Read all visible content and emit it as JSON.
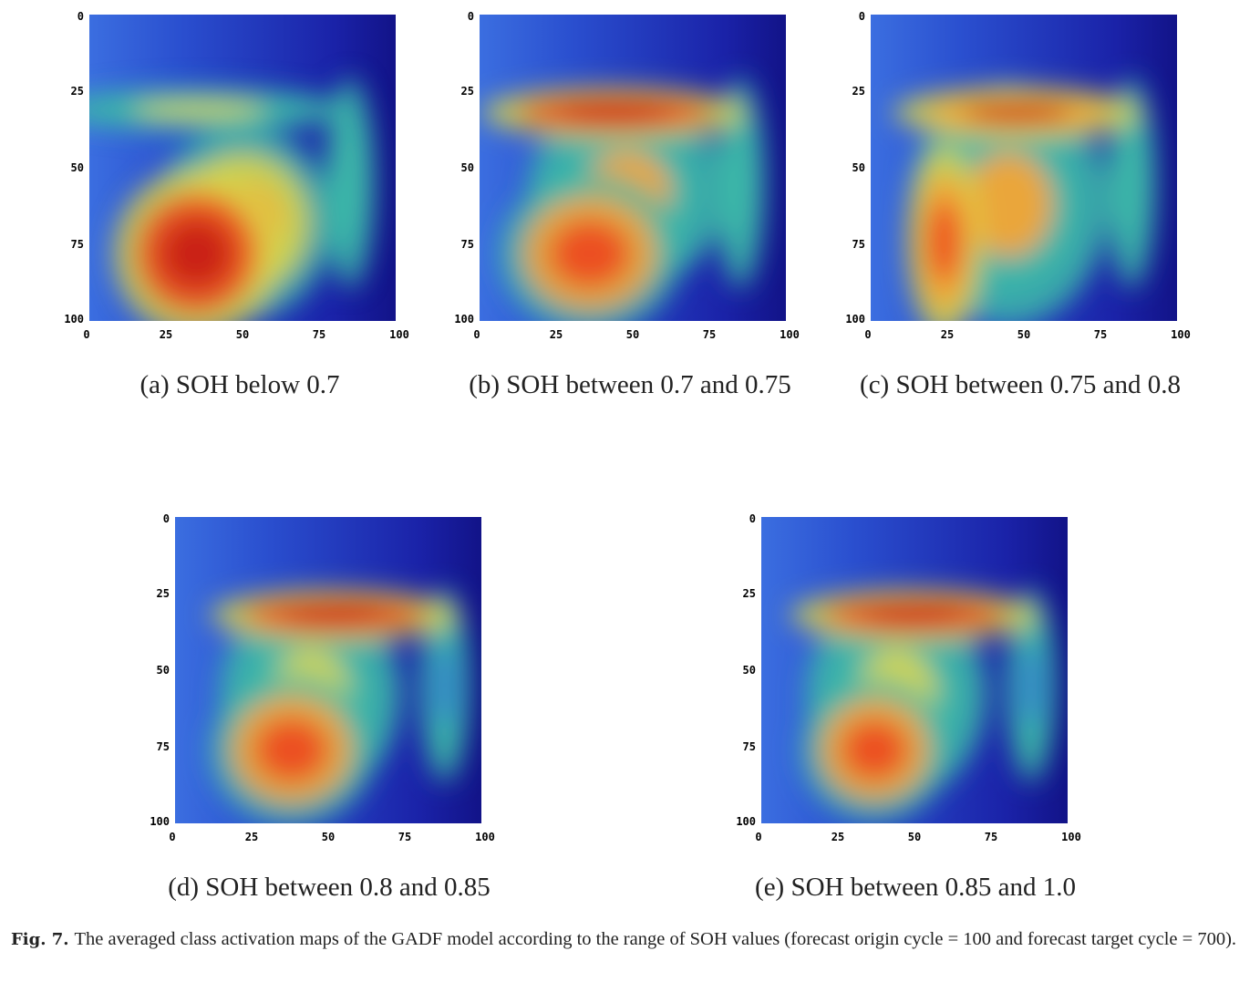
{
  "chart_data": [
    {
      "type": "heatmap",
      "panel_label": "(a) SOH below 0.7",
      "x_ticks": [
        "0",
        "25",
        "50",
        "75",
        "100"
      ],
      "y_ticks": [
        "0",
        "25",
        "50",
        "75",
        "100"
      ],
      "xlim": [
        0,
        100
      ],
      "ylim": [
        0,
        100
      ],
      "hotspots": [
        {
          "x": 35,
          "y": 78,
          "rx": 20,
          "ry": 19,
          "level": 1.0
        },
        {
          "x": 50,
          "y": 68,
          "rx": 22,
          "ry": 22,
          "level": 0.7
        },
        {
          "x": 36,
          "y": 31,
          "rx": 36,
          "ry": 4,
          "level": 0.55
        },
        {
          "x": 85,
          "y": 55,
          "rx": 6,
          "ry": 24,
          "level": 0.3
        }
      ]
    },
    {
      "type": "heatmap",
      "panel_label": "(b) SOH between 0.7 and 0.75",
      "x_ticks": [
        "0",
        "25",
        "50",
        "75",
        "100"
      ],
      "y_ticks": [
        "0",
        "25",
        "50",
        "75",
        "100"
      ],
      "xlim": [
        0,
        100
      ],
      "ylim": [
        0,
        100
      ],
      "hotspots": [
        {
          "x": 44,
          "y": 32,
          "rx": 32,
          "ry": 5,
          "level": 1.0
        },
        {
          "x": 36,
          "y": 78,
          "rx": 22,
          "ry": 18,
          "level": 0.85
        },
        {
          "x": 48,
          "y": 58,
          "rx": 24,
          "ry": 22,
          "level": 0.6
        },
        {
          "x": 85,
          "y": 55,
          "rx": 6,
          "ry": 24,
          "level": 0.3
        }
      ]
    },
    {
      "type": "heatmap",
      "panel_label": "(c) SOH between 0.75 and 0.8",
      "x_ticks": [
        "0",
        "25",
        "50",
        "75",
        "100"
      ],
      "y_ticks": [
        "0",
        "25",
        "50",
        "75",
        "100"
      ],
      "xlim": [
        0,
        100
      ],
      "ylim": [
        0,
        100
      ],
      "hotspots": [
        {
          "x": 48,
          "y": 32,
          "rx": 30,
          "ry": 5,
          "level": 0.95
        },
        {
          "x": 24,
          "y": 74,
          "rx": 9,
          "ry": 22,
          "level": 0.9
        },
        {
          "x": 45,
          "y": 62,
          "rx": 24,
          "ry": 28,
          "level": 0.6
        },
        {
          "x": 85,
          "y": 55,
          "rx": 6,
          "ry": 24,
          "level": 0.3
        }
      ]
    },
    {
      "type": "heatmap",
      "panel_label": "(d) SOH between 0.8 and 0.85",
      "x_ticks": [
        "0",
        "25",
        "50",
        "75",
        "100"
      ],
      "y_ticks": [
        "0",
        "25",
        "50",
        "75",
        "100"
      ],
      "xlim": [
        0,
        100
      ],
      "ylim": [
        0,
        100
      ],
      "hotspots": [
        {
          "x": 52,
          "y": 32,
          "rx": 30,
          "ry": 5,
          "level": 1.0
        },
        {
          "x": 38,
          "y": 76,
          "rx": 20,
          "ry": 17,
          "level": 0.85
        },
        {
          "x": 44,
          "y": 58,
          "rx": 22,
          "ry": 24,
          "level": 0.55
        },
        {
          "x": 88,
          "y": 55,
          "rx": 6,
          "ry": 22,
          "level": 0.25
        }
      ]
    },
    {
      "type": "heatmap",
      "panel_label": "(e) SOH between 0.85 and 1.0",
      "x_ticks": [
        "0",
        "25",
        "50",
        "75",
        "100"
      ],
      "y_ticks": [
        "0",
        "25",
        "50",
        "75",
        "100"
      ],
      "xlim": [
        0,
        100
      ],
      "ylim": [
        0,
        100
      ],
      "hotspots": [
        {
          "x": 50,
          "y": 32,
          "rx": 30,
          "ry": 5,
          "level": 1.0
        },
        {
          "x": 37,
          "y": 76,
          "rx": 18,
          "ry": 16,
          "level": 0.8
        },
        {
          "x": 44,
          "y": 58,
          "rx": 22,
          "ry": 24,
          "level": 0.55
        },
        {
          "x": 88,
          "y": 55,
          "rx": 6,
          "ry": 22,
          "level": 0.25
        }
      ]
    }
  ],
  "caption": {
    "label": "Fig. 7.",
    "text": "The averaged class activation maps of the GADF model according to the range of SOH values (forecast origin cycle = 100 and forecast target cycle = 700)."
  }
}
